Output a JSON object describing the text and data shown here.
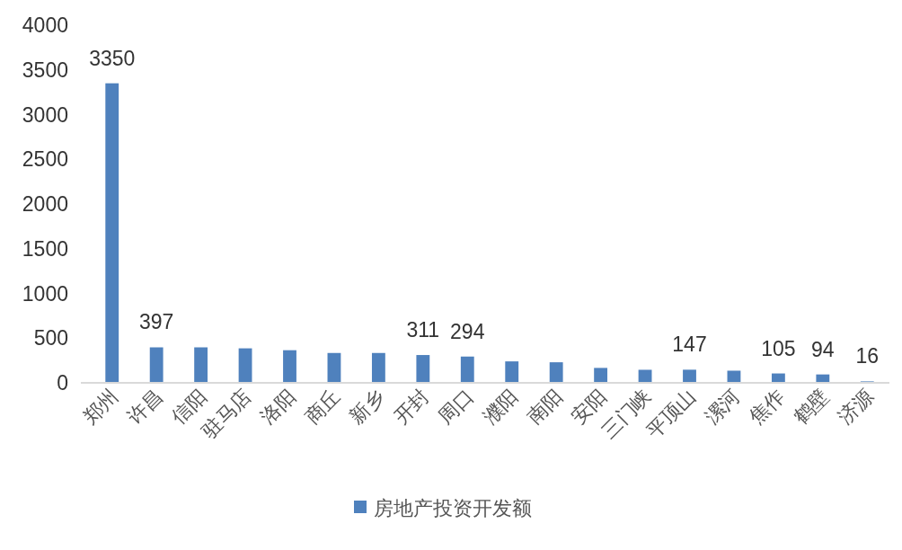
{
  "chart_data": {
    "type": "bar",
    "categories": [
      "郑州",
      "许昌",
      "信阳",
      "驻马店",
      "洛阳",
      "商丘",
      "新乡",
      "开封",
      "周口",
      "濮阳",
      "南阳",
      "安阳",
      "三门峡",
      "平顶山",
      "漯河",
      "焦作",
      "鹤壁",
      "济源"
    ],
    "series": [
      {
        "name": "房地产投资开发额",
        "color": "#4f81bd",
        "values": [
          3350,
          397,
          397,
          386,
          365,
          334,
          334,
          311,
          294,
          240,
          230,
          167,
          146,
          147,
          136,
          105,
          94,
          16
        ],
        "value_labels": [
          "3350",
          "397",
          null,
          null,
          null,
          null,
          null,
          "311",
          "294",
          null,
          null,
          null,
          null,
          "147",
          null,
          "105",
          "94",
          "16"
        ]
      }
    ],
    "ylim": [
      0,
      4000
    ],
    "yticks": [
      0,
      500,
      1000,
      1500,
      2000,
      2500,
      3000,
      3500,
      4000
    ],
    "grid": false,
    "legend": "bottom"
  }
}
